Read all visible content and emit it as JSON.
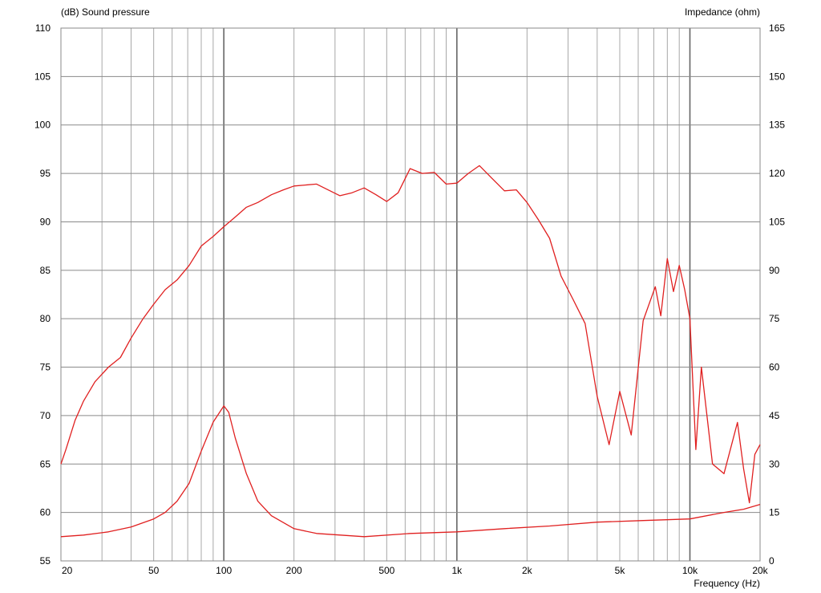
{
  "chart_data": {
    "type": "line",
    "left_axis_title": "(dB)  Sound pressure",
    "right_axis_title": "Impedance  (ohm)",
    "x_axis_title": "Frequency  (Hz)",
    "x_scale": "log",
    "xlim": [
      20,
      20000
    ],
    "ylim_left": [
      55,
      110
    ],
    "ylim_right": [
      0,
      165
    ],
    "y_left_ticks": [
      "55",
      "60",
      "65",
      "70",
      "75",
      "80",
      "85",
      "90",
      "95",
      "100",
      "105",
      "110"
    ],
    "y_right_ticks": [
      "0",
      "15",
      "30",
      "45",
      "60",
      "75",
      "90",
      "105",
      "120",
      "135",
      "150",
      "165"
    ],
    "x_ticks": [
      {
        "value": 20,
        "label": "20"
      },
      {
        "value": 50,
        "label": "50"
      },
      {
        "value": 100,
        "label": "100"
      },
      {
        "value": 200,
        "label": "200"
      },
      {
        "value": 500,
        "label": "500"
      },
      {
        "value": 1000,
        "label": "1k"
      },
      {
        "value": 2000,
        "label": "2k"
      },
      {
        "value": 5000,
        "label": "5k"
      },
      {
        "value": 10000,
        "label": "10k"
      },
      {
        "value": 20000,
        "label": "20k"
      }
    ],
    "grid": true,
    "line_color": "#e02020",
    "series": [
      {
        "axis": "left",
        "x": [
          20,
          21,
          23,
          25,
          28,
          32,
          36,
          40,
          45,
          50,
          56,
          63,
          71,
          80,
          90,
          100,
          112,
          125,
          140,
          160,
          180,
          200,
          250,
          315,
          355,
          400,
          450,
          500,
          560,
          630,
          710,
          800,
          900,
          1000,
          1120,
          1250,
          1400,
          1600,
          1800,
          2000,
          2240,
          2500,
          2800,
          3000,
          3150,
          3550,
          4000,
          4500,
          5000,
          5600,
          6300,
          7100,
          7500,
          8000,
          8500,
          9000,
          9500,
          10000,
          10600,
          11200,
          12500,
          14000,
          16000,
          17000,
          18000,
          19000,
          20000
        ],
        "y": [
          65.0,
          66.5,
          69.5,
          71.5,
          73.5,
          75.0,
          76.0,
          78.0,
          80.0,
          81.5,
          83.0,
          84.0,
          85.5,
          87.5,
          88.5,
          89.5,
          90.5,
          91.5,
          92.0,
          92.8,
          93.3,
          93.7,
          93.9,
          92.7,
          93.0,
          93.5,
          92.8,
          92.1,
          93.0,
          95.5,
          95.0,
          95.1,
          93.9,
          94.0,
          95.0,
          95.8,
          94.6,
          93.2,
          93.3,
          92.0,
          90.2,
          88.3,
          84.4,
          83.0,
          82.0,
          79.5,
          72.0,
          67.0,
          72.5,
          68.0,
          79.8,
          83.3,
          80.3,
          86.2,
          82.8,
          85.5,
          83.0,
          80.0,
          66.5,
          75.0,
          65.0,
          64.0,
          69.3,
          64.5,
          61.0,
          66.0,
          67.0
        ]
      },
      {
        "axis": "right",
        "x": [
          20,
          25,
          32,
          40,
          50,
          56,
          63,
          71,
          80,
          90,
          100,
          105,
          112,
          125,
          140,
          160,
          200,
          250,
          400,
          630,
          1000,
          1600,
          2500,
          4000,
          6300,
          10000,
          14000,
          17000,
          20000
        ],
        "y": [
          7.5,
          8.0,
          9.0,
          10.5,
          13.0,
          15.0,
          18.5,
          24.0,
          34.0,
          43.0,
          48.0,
          46.0,
          38.0,
          27.0,
          18.5,
          14.0,
          10.0,
          8.5,
          7.5,
          8.5,
          9.0,
          10.0,
          10.8,
          12.0,
          12.5,
          13.0,
          15.0,
          16.0,
          17.5
        ]
      }
    ]
  }
}
